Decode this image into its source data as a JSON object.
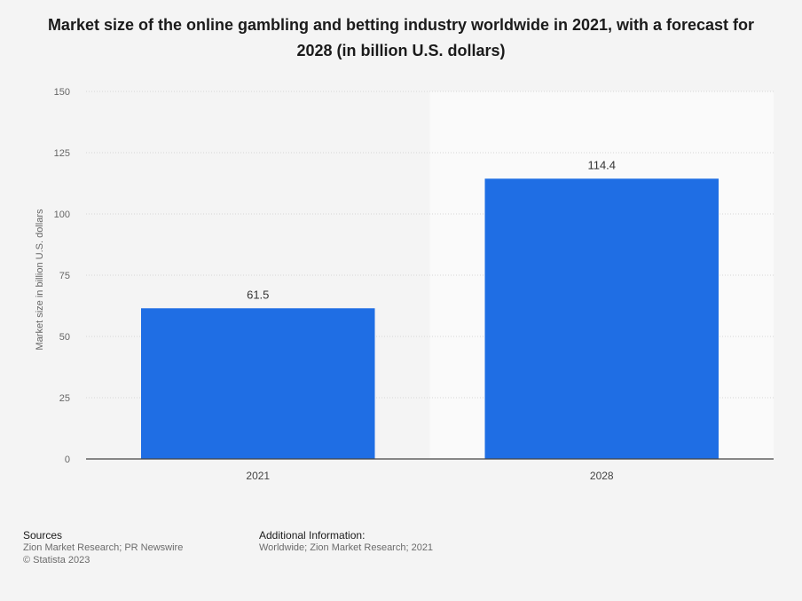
{
  "title": "Market size of the online gambling and betting industry worldwide in 2021, with a forecast for 2028 (in billion U.S. dollars)",
  "chart_data": {
    "type": "bar",
    "categories": [
      "2021",
      "2028"
    ],
    "values": [
      61.5,
      114.4
    ],
    "data_labels": [
      "61.5",
      "114.4"
    ],
    "ylabel": "Market size in billion U.S. dollars",
    "xlabel": "",
    "ylim": [
      0,
      150
    ],
    "yticks": [
      0,
      25,
      50,
      75,
      100,
      125,
      150
    ],
    "grid": true,
    "forecast_shaded_category": "2028",
    "bar_color": "#1f6ee4",
    "shade_color": "#fafafa"
  },
  "footer": {
    "sources_heading": "Sources",
    "sources_text": "Zion Market Research; PR Newswire",
    "copyright": "© Statista 2023",
    "info_heading": "Additional Information:",
    "info_text": "Worldwide; Zion Market Research; 2021"
  }
}
